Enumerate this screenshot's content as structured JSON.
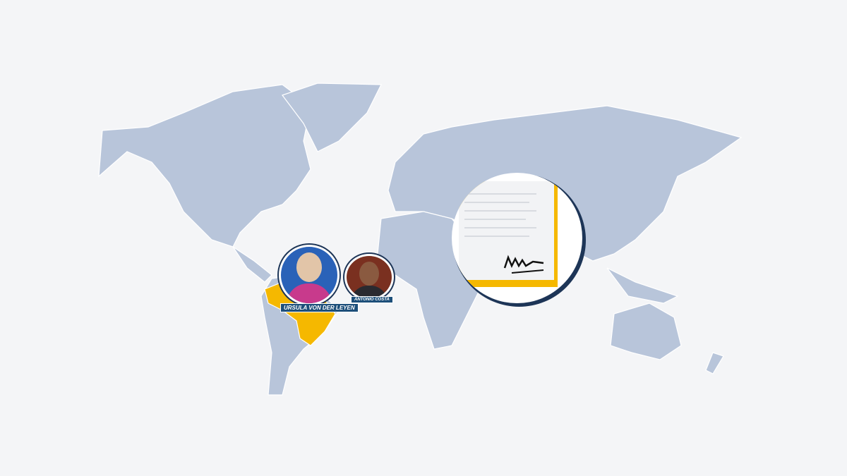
{
  "people": [
    {
      "name": "Ursula von der Leyen",
      "portrait_bg": "#2a62b8"
    },
    {
      "name": "Antonio Costa",
      "portrait_bg": "#7a3020"
    }
  ],
  "colors": {
    "land": "#b8c5da",
    "highlight": "#f5b800",
    "accent": "#1d4f7a",
    "background": "#f4f5f7"
  },
  "icons": [
    "signed-document-icon"
  ],
  "highlighted_region": "South America (Mercosur)"
}
